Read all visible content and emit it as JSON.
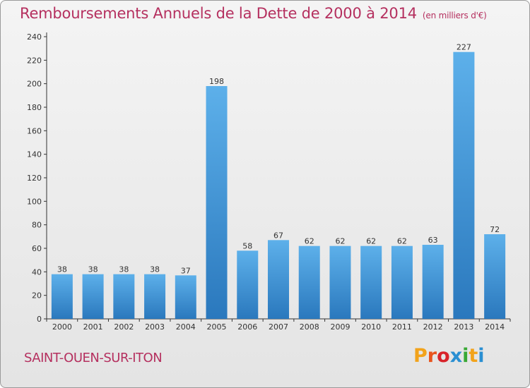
{
  "header": {
    "title": "Remboursements Annuels de la Dette de 2000 à 2014",
    "unit": "(en milliers d'€)"
  },
  "footer": {
    "commune": "SAINT-OUEN-SUR-ITON",
    "logo_text": "Proxiti",
    "logo_colors": [
      "#f2a31b",
      "#e8541e",
      "#d8232a",
      "#2a8fd2",
      "#39a935",
      "#f2a31b",
      "#2a8fd2"
    ]
  },
  "chart_data": {
    "type": "bar",
    "categories": [
      "2000",
      "2001",
      "2002",
      "2003",
      "2004",
      "2005",
      "2006",
      "2007",
      "2008",
      "2009",
      "2010",
      "2011",
      "2012",
      "2013",
      "2014"
    ],
    "values": [
      38,
      38,
      38,
      38,
      37,
      198,
      58,
      67,
      62,
      62,
      62,
      62,
      63,
      227,
      72
    ],
    "title": "Remboursements Annuels de la Dette de 2000 à 2014",
    "xlabel": "",
    "ylabel": "",
    "ylim": [
      0,
      240
    ],
    "yticks": [
      0,
      20,
      40,
      60,
      80,
      100,
      120,
      140,
      160,
      180,
      200,
      220,
      240
    ],
    "bar_color": "#3f95d6",
    "grid": false,
    "legend": "none"
  }
}
